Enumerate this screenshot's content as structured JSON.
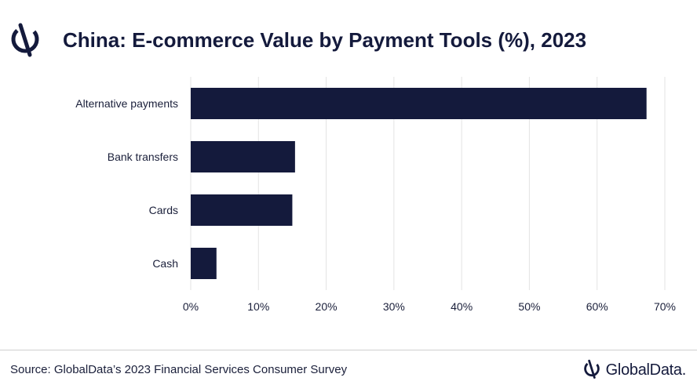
{
  "title": "China: E-commerce Value by Payment Tools (%), 2023",
  "source": "Source: GlobalData’s 2023 Financial Services Consumer Survey",
  "brand": "GlobalData.",
  "icons": {
    "header_logo": "globaldata-logo-icon",
    "footer_logo": "globaldata-logo-icon"
  },
  "colors": {
    "bar": "#141a3c",
    "grid": "#e3e3e3",
    "text": "#1a1f3a"
  },
  "chart_data": {
    "type": "bar",
    "orientation": "horizontal",
    "title": "China: E-commerce Value by Payment Tools (%), 2023",
    "categories": [
      "Alternative payments",
      "Bank transfers",
      "Cards",
      "Cash"
    ],
    "values": [
      67.3,
      15.4,
      15.0,
      3.8
    ],
    "xlim": [
      0,
      70
    ],
    "xticks": [
      0,
      10,
      20,
      30,
      40,
      50,
      60,
      70
    ],
    "xtick_labels": [
      "0%",
      "10%",
      "20%",
      "30%",
      "40%",
      "50%",
      "60%",
      "70%"
    ],
    "grid": "vertical",
    "legend": "none"
  }
}
